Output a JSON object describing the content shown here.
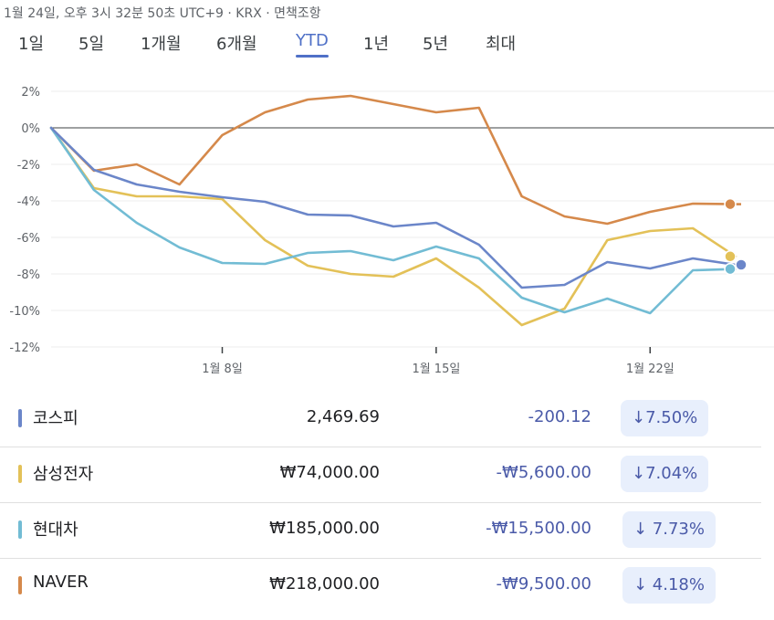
{
  "timestamp": "1월 24일, 오후 3시 32분 50초 UTC+9 · KRX · 면책조항",
  "tabs": [
    {
      "label": "1일",
      "active": false
    },
    {
      "label": "5일",
      "active": false
    },
    {
      "label": "1개월",
      "active": false
    },
    {
      "label": "6개월",
      "active": false
    },
    {
      "label": "YTD",
      "active": true
    },
    {
      "label": "1년",
      "active": false
    },
    {
      "label": "5년",
      "active": false
    },
    {
      "label": "최대",
      "active": false
    }
  ],
  "chart_data": {
    "type": "line",
    "ylim": [
      -12,
      2
    ],
    "y_ticks": [
      "2%",
      "0%",
      "-2%",
      "-4%",
      "-6%",
      "-8%",
      "-10%",
      "-12%"
    ],
    "x_ticks": [
      {
        "label": "1월 8일",
        "index": 4
      },
      {
        "label": "1월 15일",
        "index": 9
      },
      {
        "label": "1월 22일",
        "index": 14
      }
    ],
    "grid": true,
    "series": [
      {
        "name": "코스피",
        "color": "#6b86c9",
        "values": [
          0,
          -2.3,
          -3.1,
          -3.5,
          -3.8,
          -4.05,
          -4.75,
          -4.8,
          -5.4,
          -5.2,
          -6.4,
          -8.75,
          -8.6,
          -7.35,
          -7.7,
          -7.15,
          -7.5
        ]
      },
      {
        "name": "삼성전자",
        "color": "#e3c158",
        "values": [
          0,
          -3.3,
          -3.75,
          -3.75,
          -3.9,
          -6.15,
          -7.55,
          -8.0,
          -8.15,
          -7.15,
          -8.75,
          -10.8,
          -9.9,
          -6.15,
          -5.65,
          -5.5,
          -7.04
        ]
      },
      {
        "name": "현대차",
        "color": "#72bcd4",
        "values": [
          0,
          -3.4,
          -5.2,
          -6.55,
          -7.4,
          -7.45,
          -6.85,
          -6.75,
          -7.25,
          -6.5,
          -7.15,
          -9.3,
          -10.1,
          -9.35,
          -10.15,
          -7.8,
          -7.73
        ]
      },
      {
        "name": "NAVER",
        "color": "#d5894b",
        "values": [
          0,
          -2.35,
          -2.0,
          -3.1,
          -0.4,
          0.85,
          1.55,
          1.75,
          1.3,
          0.85,
          1.1,
          -3.75,
          -4.85,
          -5.25,
          -4.6,
          -4.15,
          -4.18
        ]
      }
    ]
  },
  "rows": [
    {
      "name": "코스피",
      "color": "#6b86c9",
      "price": "2,469.69",
      "change": "-200.12",
      "pct": "↓7.50%"
    },
    {
      "name": "삼성전자",
      "color": "#e3c158",
      "price": "₩74,000.00",
      "change": "-₩5,600.00",
      "pct": "↓7.04%"
    },
    {
      "name": "현대차",
      "color": "#72bcd4",
      "price": "₩185,000.00",
      "change": "-₩15,500.00",
      "pct": "↓ 7.73%"
    },
    {
      "name": "NAVER",
      "color": "#d5894b",
      "price": "₩218,000.00",
      "change": "-₩9,500.00",
      "pct": "↓ 4.18%"
    }
  ]
}
